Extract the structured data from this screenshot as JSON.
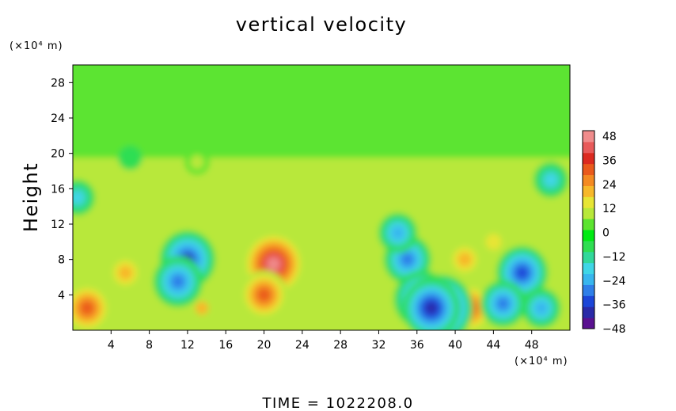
{
  "chart_data": {
    "type": "heatmap",
    "title": "vertical velocity",
    "ylabel": "Height",
    "y_unit": "(×10⁴ m)",
    "x_unit": "(×10⁴ m)",
    "xlim": [
      0,
      52
    ],
    "ylim": [
      0,
      30
    ],
    "x_ticks": [
      "4",
      "8",
      "12",
      "16",
      "20",
      "24",
      "28",
      "32",
      "36",
      "40",
      "44",
      "48"
    ],
    "y_ticks": [
      "4",
      "8",
      "12",
      "16",
      "20",
      "24",
      "28"
    ],
    "colorbar": {
      "range": [
        -48,
        48
      ],
      "tick_labels": [
        "48",
        "36",
        "24",
        "12",
        "0",
        "−12",
        "−24",
        "−36",
        "−48"
      ],
      "colors": [
        "#5a1190",
        "#2a2aa8",
        "#1c46d8",
        "#2f7fe8",
        "#38b6ee",
        "#3fd6e6",
        "#31d89a",
        "#2ede52",
        "#00ea12",
        "#5ce430",
        "#b8e83a",
        "#e7e535",
        "#f7b82a",
        "#f48a22",
        "#ea5a1c",
        "#dc2a20",
        "#e85a5a",
        "#f08c8c"
      ]
    },
    "features": [
      {
        "x": 21,
        "y": 7.5,
        "value": 44
      },
      {
        "x": 20,
        "y": 4,
        "value": 30
      },
      {
        "x": 1.5,
        "y": 2.5,
        "value": 30
      },
      {
        "x": 5.5,
        "y": 6.5,
        "value": 18
      },
      {
        "x": 13.5,
        "y": 2.5,
        "value": 16
      },
      {
        "x": 41.5,
        "y": 2.5,
        "value": 30
      },
      {
        "x": 41,
        "y": 8,
        "value": 18
      },
      {
        "x": 12,
        "y": 8,
        "value": -38
      },
      {
        "x": 11,
        "y": 5.5,
        "value": -32
      },
      {
        "x": 35,
        "y": 8,
        "value": -30
      },
      {
        "x": 36.5,
        "y": 3.5,
        "value": -38
      },
      {
        "x": 38.5,
        "y": 2.5,
        "value": -46
      },
      {
        "x": 37.5,
        "y": 2.5,
        "value": -40
      },
      {
        "x": 34,
        "y": 11,
        "value": -22
      },
      {
        "x": 47,
        "y": 6.5,
        "value": -34
      },
      {
        "x": 45,
        "y": 3,
        "value": -28
      },
      {
        "x": 49,
        "y": 2.5,
        "value": -22
      },
      {
        "x": 0.5,
        "y": 15,
        "value": -18
      },
      {
        "x": 6,
        "y": 19.5,
        "value": -8
      },
      {
        "x": 13,
        "y": 19,
        "value": 9
      },
      {
        "x": 27.5,
        "y": 4,
        "value": 8
      },
      {
        "x": 44,
        "y": 10,
        "value": 12
      },
      {
        "x": 50,
        "y": 17,
        "value": -18
      }
    ]
  },
  "footer": {
    "label": "TIME  =  1022208.0"
  }
}
